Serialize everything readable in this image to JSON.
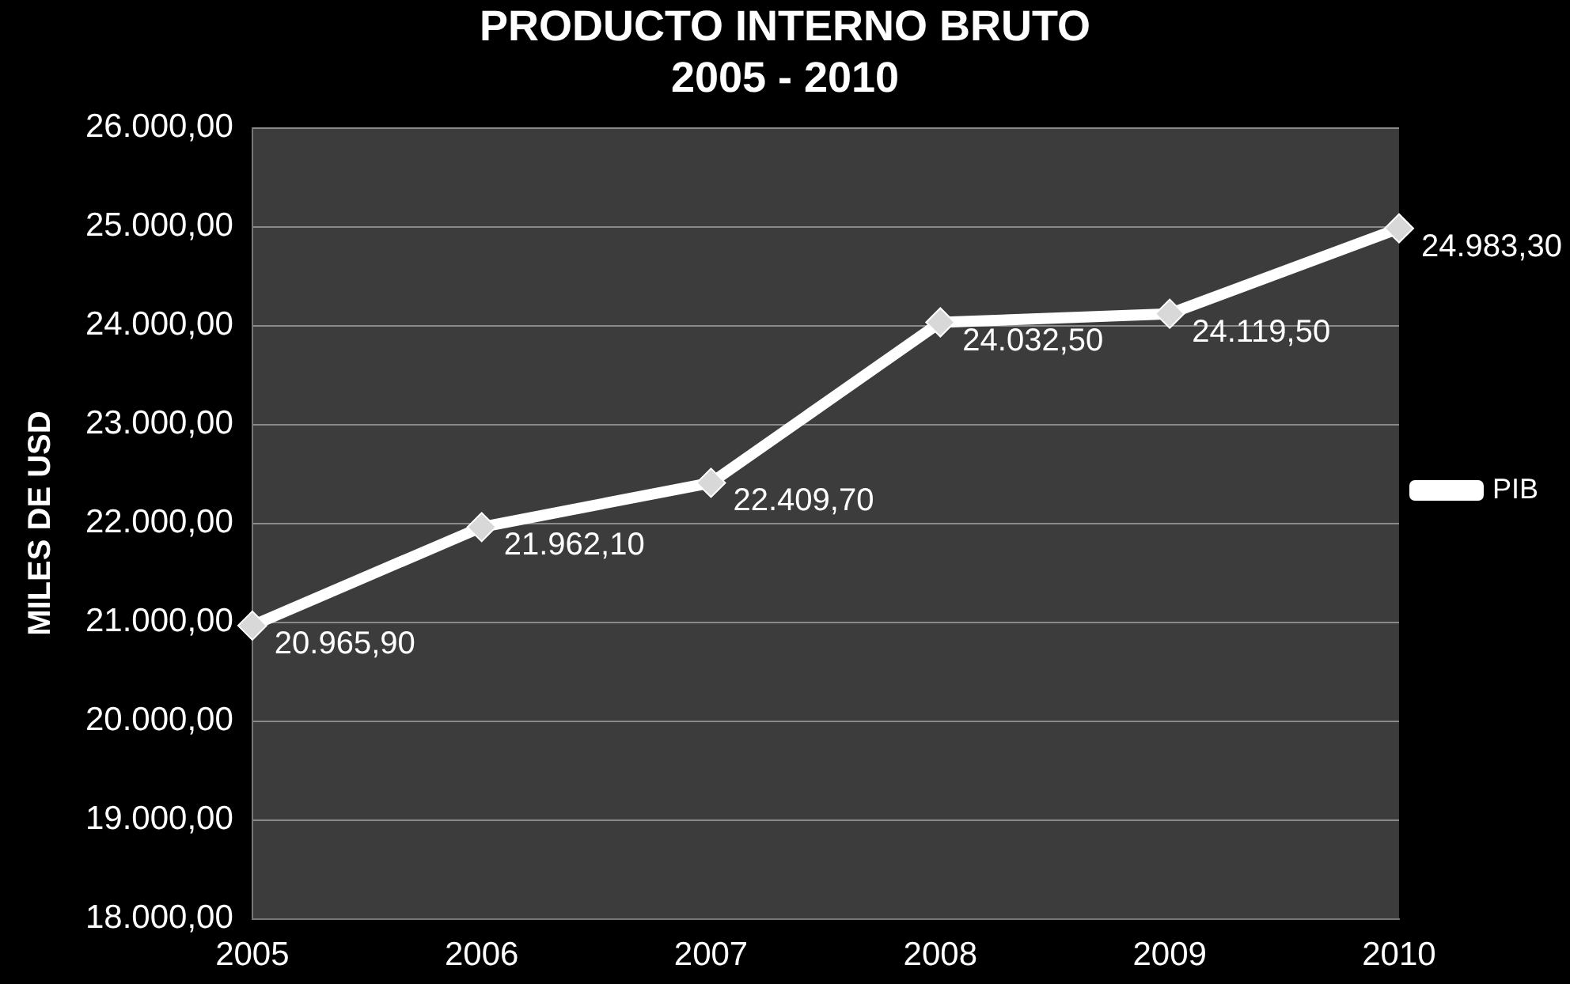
{
  "chart_data": {
    "type": "line",
    "title": "PRODUCTO INTERNO BRUTO",
    "subtitle": "2005 - 2010",
    "ylabel": "MILES DE USD",
    "categories": [
      "2005",
      "2006",
      "2007",
      "2008",
      "2009",
      "2010"
    ],
    "series": [
      {
        "name": "PIB",
        "color": "#ffffff",
        "values": [
          20965.9,
          21962.1,
          22409.7,
          24032.5,
          24119.5,
          24983.3
        ],
        "value_labels": [
          "20.965,90",
          "21.962,10",
          "22.409,70",
          "24.032,50",
          "24.119,50",
          "24.983,30"
        ]
      }
    ],
    "ylim": [
      18000,
      26000
    ],
    "yticks": [
      {
        "value": 18000,
        "label": "18.000,00"
      },
      {
        "value": 19000,
        "label": "19.000,00"
      },
      {
        "value": 20000,
        "label": "20.000,00"
      },
      {
        "value": 21000,
        "label": "21.000,00"
      },
      {
        "value": 22000,
        "label": "22.000,00"
      },
      {
        "value": 23000,
        "label": "23.000,00"
      },
      {
        "value": 24000,
        "label": "24.000,00"
      },
      {
        "value": 25000,
        "label": "25.000,00"
      },
      {
        "value": 26000,
        "label": "26.000,00"
      }
    ],
    "grid": "y",
    "legend": "right",
    "marker": "diamond",
    "line_style": "solid"
  }
}
